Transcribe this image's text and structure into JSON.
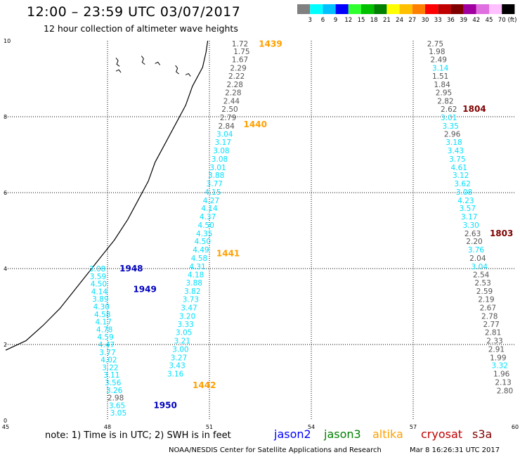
{
  "header": {
    "title": "12:00 – 23:59 UTC 03/07/2017",
    "subtitle": "12 hour collection of altimeter wave heights"
  },
  "colorbar": {
    "labels": [
      "3",
      "6",
      "9",
      "12",
      "15",
      "18",
      "21",
      "24",
      "27",
      "30",
      "33",
      "36",
      "39",
      "42",
      "45",
      "70"
    ],
    "unit": "(ft)",
    "colors": [
      "#808080",
      "#00ffff",
      "#00c0ff",
      "#0000ff",
      "#30ff30",
      "#00c000",
      "#008000",
      "#ffff00",
      "#ffc000",
      "#ff8000",
      "#ff0000",
      "#c00000",
      "#800000",
      "#a000a0",
      "#e070e0",
      "#ffc0ff",
      "#000000"
    ]
  },
  "map": {
    "lon_range": [
      45,
      60
    ],
    "lat_range": [
      0,
      10
    ],
    "x_ticks": [
      "45",
      "48",
      "51",
      "54",
      "57",
      "60"
    ],
    "y_ticks": [
      "10",
      "8",
      "6",
      "4",
      "2",
      "0"
    ],
    "grid": true
  },
  "chart_data": {
    "type": "scatter",
    "tracks": [
      {
        "satellite": "altika",
        "points": [
          {
            "lon": 51.9,
            "lat": 9.93,
            "swh": "1.72"
          },
          {
            "lon": 51.95,
            "lat": 9.72,
            "swh": "1.75"
          },
          {
            "lon": 51.9,
            "lat": 9.51,
            "swh": "1.67"
          },
          {
            "lon": 51.85,
            "lat": 9.29,
            "swh": "2.29"
          },
          {
            "lon": 51.8,
            "lat": 9.07,
            "swh": "2.22"
          },
          {
            "lon": 51.75,
            "lat": 8.85,
            "swh": "2.28"
          },
          {
            "lon": 51.7,
            "lat": 8.64,
            "swh": "2.28"
          },
          {
            "lon": 51.65,
            "lat": 8.42,
            "swh": "2.44"
          },
          {
            "lon": 51.6,
            "lat": 8.2,
            "swh": "2.50"
          },
          {
            "lon": 51.55,
            "lat": 7.98,
            "swh": "2.79"
          },
          {
            "lon": 51.5,
            "lat": 7.76,
            "swh": "2.84"
          },
          {
            "lon": 51.45,
            "lat": 7.55,
            "swh": "3.04"
          },
          {
            "lon": 51.4,
            "lat": 7.33,
            "swh": "3.17"
          },
          {
            "lon": 51.35,
            "lat": 7.11,
            "swh": "3.08"
          },
          {
            "lon": 51.3,
            "lat": 6.89,
            "swh": "3.08"
          },
          {
            "lon": 51.25,
            "lat": 6.67,
            "swh": "3.01"
          },
          {
            "lon": 51.2,
            "lat": 6.46,
            "swh": "3.88"
          },
          {
            "lon": 51.15,
            "lat": 6.24,
            "swh": "3.77"
          },
          {
            "lon": 51.1,
            "lat": 6.02,
            "swh": "4.15"
          },
          {
            "lon": 51.05,
            "lat": 5.8,
            "swh": "4.27"
          },
          {
            "lon": 51.0,
            "lat": 5.59,
            "swh": "4.14"
          },
          {
            "lon": 50.95,
            "lat": 5.37,
            "swh": "4.37"
          },
          {
            "lon": 50.9,
            "lat": 5.15,
            "swh": "4.50"
          },
          {
            "lon": 50.85,
            "lat": 4.93,
            "swh": "4.35"
          },
          {
            "lon": 50.8,
            "lat": 4.72,
            "swh": "4.50"
          },
          {
            "lon": 50.75,
            "lat": 4.5,
            "swh": "4.49"
          },
          {
            "lon": 50.7,
            "lat": 4.28,
            "swh": "4.58"
          },
          {
            "lon": 50.65,
            "lat": 4.06,
            "swh": "4.31"
          },
          {
            "lon": 50.6,
            "lat": 3.84,
            "swh": "4.18"
          },
          {
            "lon": 50.55,
            "lat": 3.63,
            "swh": "3.88"
          },
          {
            "lon": 50.5,
            "lat": 3.41,
            "swh": "3.82"
          },
          {
            "lon": 50.45,
            "lat": 3.19,
            "swh": "3.73"
          },
          {
            "lon": 50.4,
            "lat": 2.97,
            "swh": "3.47"
          },
          {
            "lon": 50.35,
            "lat": 2.75,
            "swh": "3.20"
          },
          {
            "lon": 50.3,
            "lat": 2.54,
            "swh": "3.33"
          },
          {
            "lon": 50.25,
            "lat": 2.32,
            "swh": "3.05"
          },
          {
            "lon": 50.2,
            "lat": 2.1,
            "swh": "3.21"
          },
          {
            "lon": 50.15,
            "lat": 1.88,
            "swh": "3.00"
          },
          {
            "lon": 50.1,
            "lat": 1.66,
            "swh": "3.27"
          },
          {
            "lon": 50.05,
            "lat": 1.45,
            "swh": "3.43"
          },
          {
            "lon": 50.0,
            "lat": 1.23,
            "swh": "3.16"
          }
        ],
        "pass_labels": [
          {
            "text": "1439",
            "lon": 52.8,
            "lat": 9.92
          },
          {
            "text": "1440",
            "lon": 52.35,
            "lat": 7.8
          },
          {
            "text": "1441",
            "lon": 51.55,
            "lat": 4.4
          },
          {
            "text": "1442",
            "lon": 50.85,
            "lat": 0.93
          }
        ]
      },
      {
        "satellite": "jason2",
        "points": [
          {
            "lon": 47.7,
            "lat": 4.0,
            "swh": "3.08"
          },
          {
            "lon": 47.72,
            "lat": 3.8,
            "swh": "3.59"
          },
          {
            "lon": 47.74,
            "lat": 3.6,
            "swh": "4.50"
          },
          {
            "lon": 47.76,
            "lat": 3.4,
            "swh": "4.14"
          },
          {
            "lon": 47.79,
            "lat": 3.2,
            "swh": "3.89"
          },
          {
            "lon": 47.82,
            "lat": 3.0,
            "swh": "4.30"
          },
          {
            "lon": 47.85,
            "lat": 2.8,
            "swh": "4.58"
          },
          {
            "lon": 47.88,
            "lat": 2.6,
            "swh": "4.17"
          },
          {
            "lon": 47.91,
            "lat": 2.4,
            "swh": "4.78"
          },
          {
            "lon": 47.94,
            "lat": 2.2,
            "swh": "4.59"
          },
          {
            "lon": 47.97,
            "lat": 2.0,
            "swh": "4.47"
          },
          {
            "lon": 48.0,
            "lat": 1.8,
            "swh": "3.77"
          },
          {
            "lon": 48.04,
            "lat": 1.6,
            "swh": "4.02"
          },
          {
            "lon": 48.08,
            "lat": 1.4,
            "swh": "3.22"
          },
          {
            "lon": 48.12,
            "lat": 1.2,
            "swh": "3.11"
          },
          {
            "lon": 48.16,
            "lat": 1.0,
            "swh": "3.56"
          },
          {
            "lon": 48.2,
            "lat": 0.8,
            "swh": "3.26"
          },
          {
            "lon": 48.24,
            "lat": 0.6,
            "swh": "2.98"
          },
          {
            "lon": 48.28,
            "lat": 0.4,
            "swh": "3.65"
          },
          {
            "lon": 48.32,
            "lat": 0.2,
            "swh": "3.05"
          }
        ],
        "pass_labels": [
          {
            "text": "1948",
            "lon": 48.7,
            "lat": 4.0
          },
          {
            "text": "1949",
            "lon": 49.1,
            "lat": 3.45
          },
          {
            "text": "1950",
            "lon": 49.7,
            "lat": 0.4
          }
        ]
      },
      {
        "satellite": "cryosat",
        "points": [
          {
            "lon": 57.65,
            "lat": 9.93,
            "swh": "2.75"
          },
          {
            "lon": 57.7,
            "lat": 9.72,
            "swh": "1.98"
          },
          {
            "lon": 57.75,
            "lat": 9.51,
            "swh": "2.49"
          },
          {
            "lon": 57.8,
            "lat": 9.29,
            "swh": "3.14"
          },
          {
            "lon": 57.8,
            "lat": 9.07,
            "swh": "1.51"
          },
          {
            "lon": 57.85,
            "lat": 8.85,
            "swh": "1.84"
          },
          {
            "lon": 57.9,
            "lat": 8.64,
            "swh": "2.95"
          },
          {
            "lon": 57.95,
            "lat": 8.42,
            "swh": "2.82"
          },
          {
            "lon": 58.05,
            "lat": 8.2,
            "swh": "2.62"
          },
          {
            "lon": 58.05,
            "lat": 7.98,
            "swh": "3.01"
          },
          {
            "lon": 58.1,
            "lat": 7.76,
            "swh": "3.35"
          },
          {
            "lon": 58.15,
            "lat": 7.55,
            "swh": "2.96"
          },
          {
            "lon": 58.2,
            "lat": 7.33,
            "swh": "3.18"
          },
          {
            "lon": 58.25,
            "lat": 7.11,
            "swh": "3.43"
          },
          {
            "lon": 58.3,
            "lat": 6.89,
            "swh": "3.75"
          },
          {
            "lon": 58.35,
            "lat": 6.67,
            "swh": "4.61"
          },
          {
            "lon": 58.4,
            "lat": 6.46,
            "swh": "3.12"
          },
          {
            "lon": 58.45,
            "lat": 6.24,
            "swh": "3.62"
          },
          {
            "lon": 58.5,
            "lat": 6.02,
            "swh": "3.08"
          },
          {
            "lon": 58.55,
            "lat": 5.8,
            "swh": "4.23"
          },
          {
            "lon": 58.6,
            "lat": 5.59,
            "swh": "3.57"
          },
          {
            "lon": 58.65,
            "lat": 5.37,
            "swh": "3.17"
          },
          {
            "lon": 58.7,
            "lat": 5.15,
            "swh": "3.30"
          },
          {
            "lon": 58.75,
            "lat": 4.93,
            "swh": "2.63"
          },
          {
            "lon": 58.8,
            "lat": 4.72,
            "swh": "2.20"
          },
          {
            "lon": 58.85,
            "lat": 4.5,
            "swh": "3.76"
          },
          {
            "lon": 58.9,
            "lat": 4.28,
            "swh": "2.04"
          },
          {
            "lon": 58.95,
            "lat": 4.06,
            "swh": "3.04"
          },
          {
            "lon": 59.0,
            "lat": 3.84,
            "swh": "2.54"
          },
          {
            "lon": 59.05,
            "lat": 3.63,
            "swh": "2.53"
          },
          {
            "lon": 59.1,
            "lat": 3.41,
            "swh": "2.59"
          },
          {
            "lon": 59.15,
            "lat": 3.19,
            "swh": "2.19"
          },
          {
            "lon": 59.2,
            "lat": 2.97,
            "swh": "2.67"
          },
          {
            "lon": 59.25,
            "lat": 2.75,
            "swh": "2.78"
          },
          {
            "lon": 59.3,
            "lat": 2.54,
            "swh": "2.77"
          },
          {
            "lon": 59.35,
            "lat": 2.32,
            "swh": "2.81"
          },
          {
            "lon": 59.4,
            "lat": 2.1,
            "swh": "2.33"
          },
          {
            "lon": 59.45,
            "lat": 1.88,
            "swh": "2.91"
          },
          {
            "lon": 59.5,
            "lat": 1.66,
            "swh": "1.99"
          },
          {
            "lon": 59.55,
            "lat": 1.45,
            "swh": "3.32"
          },
          {
            "lon": 59.6,
            "lat": 1.23,
            "swh": "1.96"
          },
          {
            "lon": 59.65,
            "lat": 1.01,
            "swh": "2.13"
          },
          {
            "lon": 59.7,
            "lat": 0.79,
            "swh": "2.80"
          }
        ],
        "pass_labels": [
          {
            "text": "1804",
            "lon": 58.8,
            "lat": 8.2
          },
          {
            "text": "1803",
            "lon": 59.6,
            "lat": 4.93
          }
        ]
      }
    ],
    "coastline": [
      [
        45.0,
        1.85
      ],
      [
        45.6,
        2.1
      ],
      [
        46.1,
        2.5
      ],
      [
        46.6,
        2.95
      ],
      [
        47.0,
        3.4
      ],
      [
        47.4,
        3.85
      ],
      [
        47.8,
        4.3
      ],
      [
        48.2,
        4.75
      ],
      [
        48.6,
        5.3
      ],
      [
        48.9,
        5.8
      ],
      [
        49.2,
        6.3
      ],
      [
        49.4,
        6.8
      ],
      [
        49.7,
        7.3
      ],
      [
        50.0,
        7.8
      ],
      [
        50.3,
        8.3
      ],
      [
        50.5,
        8.8
      ],
      [
        50.8,
        9.3
      ],
      [
        50.9,
        9.7
      ],
      [
        50.95,
        10.0
      ]
    ]
  },
  "legend": {
    "note": "note: 1) Time is in UTC; 2) SWH is in feet",
    "satellites": [
      {
        "name": "jason2",
        "color": "#0000ff"
      },
      {
        "name": "jason3",
        "color": "#008000"
      },
      {
        "name": "altika",
        "color": "#ffa000"
      },
      {
        "name": "cryosat",
        "color": "#c00000"
      },
      {
        "name": "s3a",
        "color": "#800000"
      }
    ]
  },
  "footer": {
    "center": "NOAA/NESDIS Center for Satellite Applications and Research",
    "timestamp": "Mar  8 16:26:31 UTC 2017"
  },
  "style": {
    "label_color_grey": "#555555",
    "label_color_cyan": "#00e0ff",
    "altika_color": "#ffa000",
    "jason2_color": "#0000c0",
    "cryosat_label_color": "#800000"
  }
}
